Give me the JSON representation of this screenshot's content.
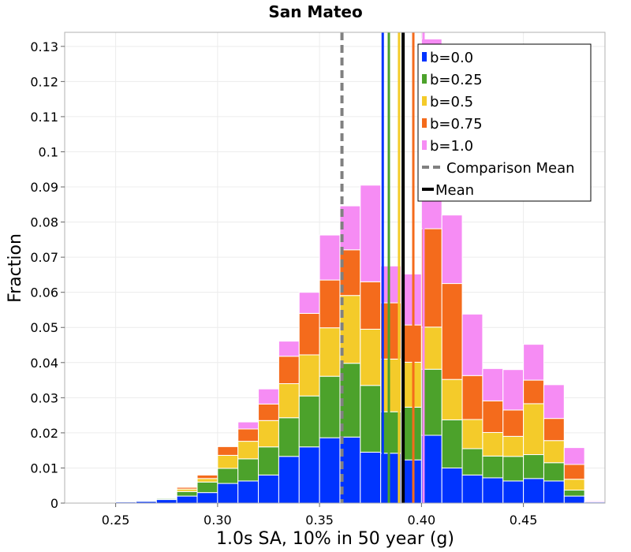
{
  "chart_data": {
    "type": "bar",
    "stacked": true,
    "title": "San Mateo",
    "xlabel": "1.0s SA, 10% in 50 year (g)",
    "ylabel": "Fraction",
    "xlim": [
      0.225,
      0.49
    ],
    "ylim": [
      0,
      0.134
    ],
    "bin_width": 0.01,
    "grid": true,
    "legend_position": "top-right",
    "xticks": [
      0.25,
      0.3,
      0.35,
      0.4,
      0.45
    ],
    "xtick_labels": [
      "0.25",
      "0.30",
      "0.35",
      "0.40",
      "0.45"
    ],
    "yticks": [
      0,
      0.01,
      0.02,
      0.03,
      0.04,
      0.05,
      0.06,
      0.07,
      0.08,
      0.09,
      0.1,
      0.11,
      0.12,
      0.13
    ],
    "ytick_labels": [
      "0",
      "0.01",
      "0.02",
      "0.03",
      "0.04",
      "0.05",
      "0.06",
      "0.07",
      "0.08",
      "0.09",
      "0.1",
      "0.11",
      "0.12",
      "0.13"
    ],
    "bin_centers": [
      0.235,
      0.245,
      0.255,
      0.265,
      0.275,
      0.285,
      0.295,
      0.305,
      0.315,
      0.325,
      0.335,
      0.345,
      0.355,
      0.365,
      0.375,
      0.385,
      0.395,
      0.405,
      0.415,
      0.425,
      0.435,
      0.445,
      0.455,
      0.465,
      0.475,
      0.485
    ],
    "series": [
      {
        "name": "b=0.0",
        "color": "#0033ff",
        "values": [
          0.0002,
          0.0002,
          0.0003,
          0.0005,
          0.001,
          0.002,
          0.003,
          0.0056,
          0.0063,
          0.008,
          0.0133,
          0.016,
          0.0186,
          0.0188,
          0.0145,
          0.0142,
          0.0123,
          0.0193,
          0.01,
          0.008,
          0.0072,
          0.0063,
          0.007,
          0.0063,
          0.002,
          0.0003
        ]
      },
      {
        "name": "b=0.25",
        "color": "#4ca22b",
        "values": [
          0.0,
          0.0,
          0.0,
          0.0002,
          0.0003,
          0.0013,
          0.003,
          0.0043,
          0.0063,
          0.008,
          0.011,
          0.0145,
          0.0175,
          0.021,
          0.019,
          0.0118,
          0.015,
          0.0188,
          0.0137,
          0.0075,
          0.0062,
          0.007,
          0.0068,
          0.0052,
          0.0017,
          0.0
        ]
      },
      {
        "name": "b=0.5",
        "color": "#f4cb2a",
        "values": [
          0.0,
          0.0,
          0.0,
          0.0001,
          0.0002,
          0.0007,
          0.001,
          0.0037,
          0.005,
          0.0075,
          0.0097,
          0.0117,
          0.0138,
          0.0193,
          0.016,
          0.015,
          0.0128,
          0.012,
          0.0115,
          0.0083,
          0.0067,
          0.0057,
          0.0145,
          0.0063,
          0.0031,
          0.0
        ]
      },
      {
        "name": "b=0.75",
        "color": "#f46b1c",
        "values": [
          0.0,
          0.0,
          0.0,
          0.0,
          0.0,
          0.0005,
          0.001,
          0.0025,
          0.0035,
          0.0047,
          0.0078,
          0.0118,
          0.0136,
          0.013,
          0.0135,
          0.016,
          0.0106,
          0.028,
          0.0273,
          0.0125,
          0.009,
          0.0075,
          0.0067,
          0.0063,
          0.0042,
          0.0
        ]
      },
      {
        "name": "b=1.0",
        "color": "#f68cf4",
        "values": [
          0.0,
          0.0,
          0.0,
          0.0,
          0.0,
          0.0001,
          0.0002,
          0.0002,
          0.002,
          0.0043,
          0.0043,
          0.006,
          0.0128,
          0.0125,
          0.0275,
          0.0105,
          0.0145,
          0.054,
          0.0195,
          0.0175,
          0.0092,
          0.0115,
          0.0102,
          0.0096,
          0.0048,
          0.0003
        ]
      }
    ],
    "vlines": [
      {
        "series": "b=0.0",
        "x": 0.381
      },
      {
        "series": "b=0.25",
        "x": 0.384
      },
      {
        "series": "b=0.5",
        "x": 0.389
      },
      {
        "series": "b=0.75",
        "x": 0.396
      },
      {
        "series": "b=1.0",
        "x": 0.401
      }
    ],
    "comparison_mean": {
      "label": "Comparison Mean",
      "x": 0.361,
      "color": "#808080"
    },
    "mean": {
      "label": "Mean",
      "x": 0.391,
      "color": "#000000"
    }
  }
}
